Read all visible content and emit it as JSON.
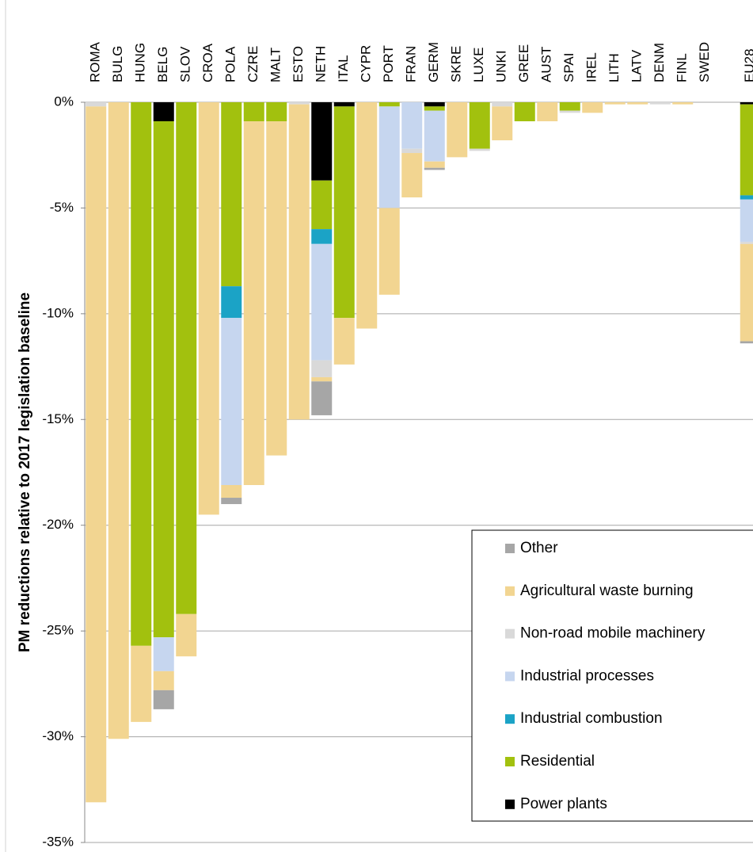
{
  "chart_data": {
    "type": "bar",
    "stacked": true,
    "y_label": "PM reductions relative to 2017 legislation baseline",
    "categories": [
      "ROMA",
      "BULG",
      "HUNG",
      "BELG",
      "SLOV",
      "CROA",
      "POLA",
      "CZRE",
      "MALT",
      "ESTO",
      "NETH",
      "ITAL",
      "CYPR",
      "PORT",
      "FRAN",
      "GERM",
      "SKRE",
      "LUXE",
      "UNKI",
      "GREE",
      "AUST",
      "SPAI",
      "IREL",
      "LITH",
      "LATV",
      "DENM",
      "FINL",
      "SWED",
      null,
      "EU28"
    ],
    "series": [
      {
        "name": "Power plants",
        "color": "#000000",
        "values": [
          0,
          0,
          0,
          -0.9,
          0,
          0,
          0,
          0,
          0,
          0,
          -3.7,
          -0.2,
          0,
          0,
          0,
          -0.2,
          0,
          0,
          0,
          0,
          0,
          0,
          0,
          0,
          0,
          0,
          0,
          0,
          null,
          -0.1
        ]
      },
      {
        "name": "Residential",
        "color": "#a2c10e",
        "values": [
          0,
          0,
          -25.7,
          -24.4,
          -24.2,
          0,
          -8.7,
          -0.9,
          -0.9,
          0,
          -2.3,
          -10.0,
          0,
          -0.2,
          0,
          -0.2,
          0,
          -2.2,
          0,
          -0.9,
          0,
          -0.4,
          0,
          0,
          0,
          0,
          0,
          0,
          null,
          -4.3
        ]
      },
      {
        "name": "Industrial combustion",
        "color": "#1ba3c6",
        "values": [
          0,
          0,
          0,
          0,
          0,
          0,
          -1.5,
          0,
          0,
          0,
          -0.7,
          0,
          0,
          0,
          0,
          0,
          0,
          0,
          0,
          0,
          0,
          0,
          0,
          0,
          0,
          0,
          0,
          0,
          null,
          -0.2
        ]
      },
      {
        "name": "Industrial processes",
        "color": "#c6d6ef",
        "values": [
          0,
          0,
          0,
          -1.6,
          0,
          0,
          -7.9,
          0,
          0,
          0,
          -5.5,
          0,
          0,
          -4.8,
          -2.2,
          -2.4,
          0,
          0,
          0,
          0,
          0,
          0,
          0,
          0,
          0,
          0,
          0,
          0,
          null,
          -2.0
        ]
      },
      {
        "name": "Non-road mobile machinery",
        "color": "#d9d9d9",
        "values": [
          -0.2,
          0,
          0,
          0,
          0,
          0,
          0,
          0,
          0,
          -0.1,
          -0.8,
          0,
          0,
          0,
          -0.2,
          0,
          0,
          -0.1,
          -0.2,
          0,
          0,
          -0.1,
          0,
          0,
          0,
          -0.1,
          0,
          0,
          null,
          -0.1
        ]
      },
      {
        "name": "Agricultural waste burning",
        "color": "#f2d591",
        "values": [
          -32.9,
          -30.1,
          -3.6,
          -0.9,
          -2.0,
          -19.5,
          -0.6,
          -17.2,
          -15.8,
          -14.9,
          -0.2,
          -2.2,
          -10.7,
          -4.1,
          -2.1,
          -0.3,
          -2.6,
          0,
          -1.6,
          0,
          -0.9,
          0,
          -0.5,
          -0.1,
          -0.1,
          0,
          -0.1,
          0,
          null,
          -4.6
        ]
      },
      {
        "name": "Other",
        "color": "#a6a6a6",
        "values": [
          0,
          0,
          0,
          -0.9,
          0,
          0,
          -0.3,
          0,
          0,
          0,
          -1.6,
          0,
          0,
          0,
          0,
          -0.1,
          0,
          0,
          0,
          0,
          0,
          0,
          0,
          0,
          0,
          0,
          0,
          0,
          null,
          -0.1
        ]
      }
    ],
    "ylim": [
      -35,
      0
    ],
    "yticks": [
      {
        "value": 0,
        "label": "0%"
      },
      {
        "value": -5,
        "label": "-5%"
      },
      {
        "value": -10,
        "label": "-10%"
      },
      {
        "value": -15,
        "label": "-15%"
      },
      {
        "value": -20,
        "label": "-20%"
      },
      {
        "value": -25,
        "label": "-25%"
      },
      {
        "value": -30,
        "label": "-30%"
      },
      {
        "value": -35,
        "label": "-35%"
      }
    ],
    "grid": true,
    "legend": "lower right"
  }
}
